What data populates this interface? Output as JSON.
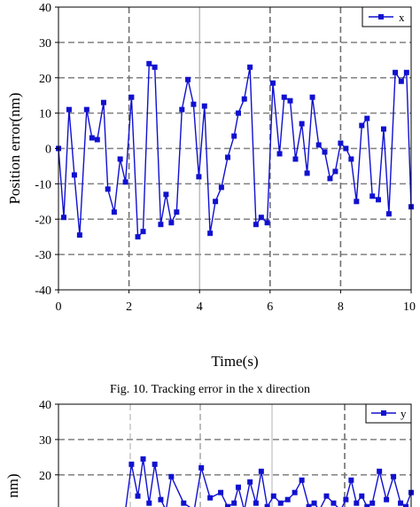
{
  "chart_data": [
    {
      "type": "line",
      "title": "",
      "caption": "Fig. 10. Tracking error in the x direction",
      "xlabel": "Time(s)",
      "ylabel": "Position error(nm)",
      "xlim": [
        0,
        10
      ],
      "ylim": [
        -40,
        40
      ],
      "x_ticks": [
        "0",
        "2",
        "4",
        "6",
        "8",
        "10"
      ],
      "y_ticks": [
        "40",
        "30",
        "20",
        "10",
        "0",
        "-10",
        "-20",
        "-30",
        "-40"
      ],
      "grid": true,
      "legend_position": "top-right",
      "series": [
        {
          "name": "x",
          "color": "#1010d0",
          "x": [
            0,
            0.15,
            0.3,
            0.45,
            0.6,
            0.8,
            0.95,
            1.1,
            1.28,
            1.4,
            1.58,
            1.75,
            1.9,
            2.07,
            2.25,
            2.4,
            2.57,
            2.73,
            2.9,
            3.05,
            3.2,
            3.35,
            3.5,
            3.67,
            3.83,
            3.98,
            4.14,
            4.3,
            4.45,
            4.62,
            4.8,
            4.98,
            5.1,
            5.27,
            5.43,
            5.6,
            5.75,
            5.92,
            6.08,
            6.27,
            6.4,
            6.57,
            6.72,
            6.9,
            7.05,
            7.2,
            7.38,
            7.55,
            7.7,
            7.85,
            8.0,
            8.15,
            8.3,
            8.45,
            8.6,
            8.75,
            8.9,
            9.07,
            9.22,
            9.37,
            9.55,
            9.72,
            9.87,
            10.0
          ],
          "y": [
            0,
            -19.5,
            11,
            -7.5,
            -24.5,
            11,
            3,
            2.5,
            13,
            -11.5,
            -18,
            -3,
            -9.5,
            14.5,
            -25,
            -23.5,
            24,
            23,
            -21.5,
            -13,
            -21,
            -18,
            11,
            19.5,
            12.5,
            -8,
            12,
            -24,
            -15,
            -11,
            -2.5,
            3.5,
            10,
            14,
            23,
            -21.5,
            -19.5,
            -21,
            18.5,
            -1.5,
            14.5,
            13.5,
            -3,
            7,
            -7,
            14.5,
            1,
            -1,
            -8.5,
            -6.5,
            1.5,
            0,
            -3,
            -15,
            6.5,
            8.5,
            -13.5,
            -14.5,
            5.5,
            -18.5,
            21.5,
            19,
            21.5,
            -16.5
          ]
        }
      ]
    },
    {
      "type": "line",
      "title": "",
      "ylabel_visible": "nm)",
      "ylim": [
        -40,
        40
      ],
      "y_ticks": [
        "40",
        "30",
        "20"
      ],
      "grid": true,
      "legend_position": "top-right",
      "series": [
        {
          "name": "y",
          "color": "#1010d0",
          "x": [
            1.9,
            2.07,
            2.25,
            2.4,
            2.57,
            2.73,
            2.9,
            3.05,
            3.2,
            3.55,
            3.85,
            4.05,
            4.3,
            4.6,
            4.8,
            4.98,
            5.1,
            5.27,
            5.43,
            5.6,
            5.75,
            5.92,
            6.1,
            6.3,
            6.5,
            6.7,
            6.9,
            7.1,
            7.25,
            7.4,
            7.6,
            7.8,
            8.0,
            8.15,
            8.3,
            8.45,
            8.6,
            8.75,
            8.9,
            9.1,
            9.3,
            9.5,
            9.7,
            9.85,
            10.0
          ],
          "y": [
            10,
            23,
            14,
            24.5,
            12,
            23,
            13,
            10,
            19.5,
            12,
            10,
            22,
            13.5,
            15,
            11,
            12,
            16.5,
            10,
            18,
            12,
            21,
            11,
            14,
            12,
            13,
            15,
            18.5,
            11,
            12,
            10,
            14,
            12,
            10,
            13,
            18.5,
            12,
            14,
            11,
            12,
            21,
            13,
            19.5,
            12,
            11,
            15
          ]
        }
      ]
    }
  ]
}
